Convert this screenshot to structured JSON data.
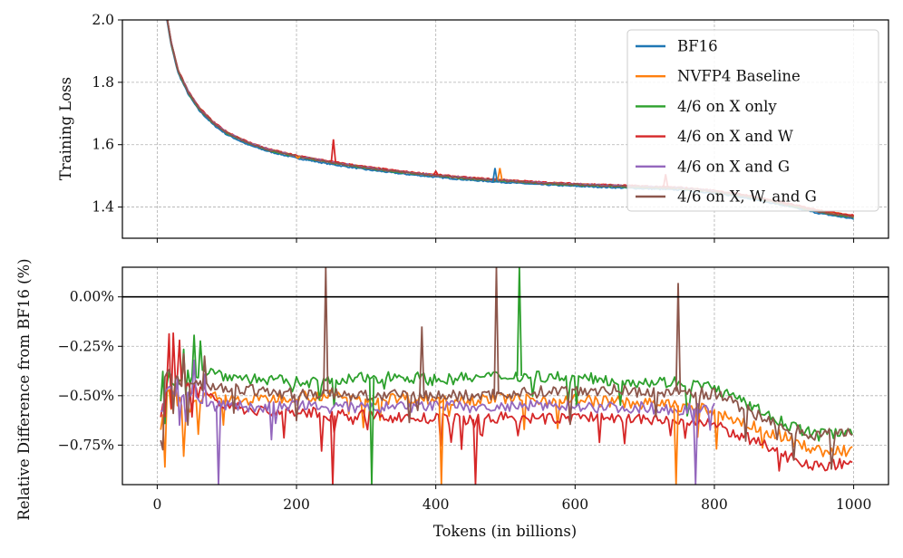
{
  "chart_data": [
    {
      "type": "line",
      "ylabel": "Training Loss",
      "xlim": [
        -50,
        1050
      ],
      "ylim": [
        1.3,
        2.0
      ],
      "yticks": [
        1.4,
        1.6,
        1.8,
        2.0
      ],
      "ytick_labels": [
        "1.4",
        "1.6",
        "1.8",
        "2.0"
      ],
      "xticks": [
        0,
        200,
        400,
        600,
        800,
        1000
      ],
      "grid": true,
      "legend_position": "top-right",
      "series": [
        {
          "name": "BF16",
          "color": "#1f77b4",
          "x": [
            0,
            10,
            20,
            30,
            45,
            60,
            80,
            100,
            130,
            160,
            200,
            250,
            300,
            350,
            400,
            450,
            500,
            550,
            600,
            650,
            700,
            750,
            800,
            850,
            900,
            950,
            1000
          ],
          "y": [
            2.3,
            2.05,
            1.92,
            1.83,
            1.76,
            1.71,
            1.665,
            1.632,
            1.6,
            1.578,
            1.557,
            1.537,
            1.52,
            1.507,
            1.496,
            1.486,
            1.479,
            1.472,
            1.467,
            1.463,
            1.459,
            1.455,
            1.445,
            1.428,
            1.405,
            1.38,
            1.362
          ]
        },
        {
          "name": "NVFP4 Baseline",
          "color": "#ff7f0e",
          "x": [
            0,
            10,
            20,
            30,
            45,
            60,
            80,
            100,
            130,
            160,
            200,
            250,
            300,
            350,
            400,
            450,
            500,
            550,
            600,
            650,
            700,
            750,
            800,
            850,
            900,
            950,
            1000
          ],
          "y": [
            2.3,
            2.06,
            1.93,
            1.84,
            1.77,
            1.72,
            1.673,
            1.64,
            1.608,
            1.585,
            1.564,
            1.545,
            1.528,
            1.514,
            1.503,
            1.493,
            1.486,
            1.479,
            1.474,
            1.47,
            1.466,
            1.462,
            1.452,
            1.436,
            1.413,
            1.389,
            1.372
          ]
        },
        {
          "name": "4/6 on X only",
          "color": "#2ca02c",
          "x": [
            0,
            10,
            20,
            30,
            45,
            60,
            80,
            100,
            130,
            160,
            200,
            250,
            300,
            350,
            400,
            450,
            500,
            550,
            600,
            650,
            700,
            750,
            800,
            850,
            900,
            950,
            1000
          ],
          "y": [
            2.3,
            2.06,
            1.925,
            1.835,
            1.765,
            1.715,
            1.67,
            1.637,
            1.605,
            1.582,
            1.562,
            1.542,
            1.525,
            1.511,
            1.5,
            1.49,
            1.483,
            1.476,
            1.471,
            1.467,
            1.463,
            1.459,
            1.449,
            1.432,
            1.409,
            1.384,
            1.367
          ]
        },
        {
          "name": "4/6 on X and W",
          "color": "#d62728",
          "x": [
            0,
            10,
            20,
            30,
            45,
            60,
            80,
            100,
            130,
            160,
            200,
            250,
            300,
            350,
            400,
            450,
            500,
            550,
            600,
            650,
            700,
            750,
            800,
            850,
            900,
            950,
            1000
          ],
          "y": [
            2.3,
            2.06,
            1.93,
            1.84,
            1.77,
            1.72,
            1.674,
            1.641,
            1.609,
            1.586,
            1.565,
            1.546,
            1.529,
            1.515,
            1.504,
            1.494,
            1.487,
            1.48,
            1.475,
            1.471,
            1.467,
            1.463,
            1.453,
            1.437,
            1.414,
            1.39,
            1.373
          ]
        },
        {
          "name": "4/6 on X and G",
          "color": "#9467bd",
          "x": [
            0,
            10,
            20,
            30,
            45,
            60,
            80,
            100,
            130,
            160,
            200,
            250,
            300,
            350,
            400,
            450,
            500,
            550,
            600,
            650,
            700,
            750,
            800
          ],
          "y": [
            2.3,
            2.06,
            1.928,
            1.838,
            1.768,
            1.718,
            1.672,
            1.639,
            1.607,
            1.584,
            1.563,
            1.544,
            1.527,
            1.513,
            1.502,
            1.492,
            1.485,
            1.478,
            1.473,
            1.469,
            1.465,
            1.461,
            1.451
          ]
        },
        {
          "name": "4/6 on X, W, and G",
          "color": "#8c564b",
          "x": [
            0,
            10,
            20,
            30,
            45,
            60,
            80,
            100,
            130,
            160,
            200,
            250,
            300,
            350,
            400,
            450,
            500,
            550,
            600,
            650,
            700,
            750,
            800,
            850,
            900,
            950,
            1000
          ],
          "y": [
            2.3,
            2.06,
            1.926,
            1.836,
            1.766,
            1.716,
            1.671,
            1.638,
            1.606,
            1.583,
            1.563,
            1.543,
            1.526,
            1.512,
            1.501,
            1.491,
            1.484,
            1.477,
            1.472,
            1.468,
            1.464,
            1.46,
            1.45,
            1.433,
            1.41,
            1.385,
            1.368
          ]
        }
      ],
      "spikes": [
        {
          "series": "4/6 on X and W",
          "x": 253,
          "y": 1.617
        },
        {
          "series": "4/6 on X and W",
          "x": 400,
          "y": 1.515
        },
        {
          "series": "BF16",
          "x": 485,
          "y": 1.525
        },
        {
          "series": "NVFP4 Baseline",
          "x": 492,
          "y": 1.525
        },
        {
          "series": "4/6 on X and W",
          "x": 730,
          "y": 1.505
        },
        {
          "series": "NVFP4 Baseline",
          "x": 202,
          "y": 1.557
        }
      ]
    },
    {
      "type": "line",
      "ylabel": "Relative Difference from BF16 (%)",
      "xlabel": "Tokens (in billions)",
      "xlim": [
        -50,
        1050
      ],
      "ylim": [
        -0.95,
        0.15
      ],
      "yticks": [
        0.0,
        -0.25,
        -0.5,
        -0.75
      ],
      "ytick_labels": [
        "0.00%",
        "−0.25%",
        "−0.50%",
        "−0.75%"
      ],
      "xticks": [
        0,
        200,
        400,
        600,
        800,
        1000
      ],
      "xtick_labels": [
        "0",
        "200",
        "400",
        "600",
        "800",
        "1000"
      ],
      "reference_line": 0.0,
      "grid": true,
      "series": [
        {
          "name": "NVFP4 Baseline",
          "color": "#ff7f0e",
          "x": [
            5,
            15,
            25,
            40,
            60,
            80,
            100,
            150,
            200,
            250,
            300,
            350,
            400,
            450,
            500,
            550,
            600,
            650,
            700,
            750,
            800,
            850,
            900,
            950,
            1000
          ],
          "y": [
            -0.7,
            -0.45,
            -0.5,
            -0.58,
            -0.52,
            -0.5,
            -0.52,
            -0.52,
            -0.5,
            -0.5,
            -0.52,
            -0.51,
            -0.52,
            -0.52,
            -0.51,
            -0.52,
            -0.52,
            -0.53,
            -0.54,
            -0.55,
            -0.58,
            -0.65,
            -0.71,
            -0.78,
            -0.78
          ]
        },
        {
          "name": "4/6 on X only",
          "color": "#2ca02c",
          "x": [
            5,
            15,
            25,
            40,
            60,
            80,
            100,
            150,
            200,
            250,
            300,
            350,
            400,
            450,
            500,
            550,
            600,
            650,
            700,
            750,
            800,
            850,
            900,
            950,
            1000
          ],
          "y": [
            -0.55,
            -0.4,
            -0.45,
            -0.4,
            -0.38,
            -0.38,
            -0.4,
            -0.42,
            -0.43,
            -0.43,
            -0.41,
            -0.4,
            -0.42,
            -0.41,
            -0.4,
            -0.4,
            -0.41,
            -0.42,
            -0.43,
            -0.43,
            -0.46,
            -0.55,
            -0.64,
            -0.7,
            -0.67
          ]
        },
        {
          "name": "4/6 on X and W",
          "color": "#d62728",
          "x": [
            5,
            15,
            25,
            40,
            60,
            80,
            100,
            150,
            200,
            250,
            300,
            350,
            400,
            450,
            500,
            550,
            600,
            650,
            700,
            750,
            800,
            850,
            900,
            950,
            1000
          ],
          "y": [
            -0.6,
            -0.4,
            -0.4,
            -0.45,
            -0.45,
            -0.52,
            -0.55,
            -0.58,
            -0.58,
            -0.6,
            -0.6,
            -0.61,
            -0.62,
            -0.62,
            -0.61,
            -0.62,
            -0.61,
            -0.61,
            -0.62,
            -0.63,
            -0.65,
            -0.72,
            -0.8,
            -0.86,
            -0.83
          ]
        },
        {
          "name": "4/6 on X and G",
          "color": "#9467bd",
          "x": [
            5,
            15,
            25,
            40,
            60,
            80,
            100,
            150,
            200,
            250,
            300,
            350,
            400,
            450,
            500,
            550,
            600,
            650,
            700,
            750,
            800
          ],
          "y": [
            -0.6,
            -0.45,
            -0.48,
            -0.5,
            -0.52,
            -0.55,
            -0.55,
            -0.56,
            -0.55,
            -0.56,
            -0.56,
            -0.56,
            -0.55,
            -0.56,
            -0.56,
            -0.55,
            -0.55,
            -0.56,
            -0.56,
            -0.57,
            -0.56
          ]
        },
        {
          "name": "4/6 on X, W, and G",
          "color": "#8c564b",
          "x": [
            5,
            15,
            25,
            40,
            60,
            80,
            100,
            150,
            200,
            250,
            300,
            350,
            400,
            450,
            500,
            550,
            600,
            650,
            700,
            750,
            800,
            850,
            900,
            950,
            1000
          ],
          "y": [
            -0.5,
            -0.35,
            -0.4,
            -0.45,
            -0.45,
            -0.45,
            -0.46,
            -0.48,
            -0.49,
            -0.49,
            -0.5,
            -0.5,
            -0.5,
            -0.5,
            -0.49,
            -0.48,
            -0.47,
            -0.47,
            -0.48,
            -0.48,
            -0.49,
            -0.58,
            -0.66,
            -0.7,
            -0.68
          ]
        }
      ],
      "spikes": [
        {
          "series": "4/6 on X, W, and G",
          "x": 242,
          "y": 0.15
        },
        {
          "series": "4/6 on X, W, and G",
          "x": 487,
          "y": 0.15
        },
        {
          "series": "4/6 on X, W, and G",
          "x": 748,
          "y": 0.07
        },
        {
          "series": "4/6 on X only",
          "x": 520,
          "y": 0.15
        },
        {
          "series": "4/6 on X, W, and G",
          "x": 380,
          "y": -0.15
        },
        {
          "series": "4/6 on X and W",
          "x": 252,
          "y": -0.95
        },
        {
          "series": "NVFP4 Baseline",
          "x": 408,
          "y": -0.95
        },
        {
          "series": "4/6 on X and G",
          "x": 88,
          "y": -0.95
        },
        {
          "series": "4/6 on X only",
          "x": 308,
          "y": -0.95
        },
        {
          "series": "4/6 on X and W",
          "x": 457,
          "y": -0.95
        },
        {
          "series": "NVFP4 Baseline",
          "x": 745,
          "y": -0.95
        },
        {
          "series": "4/6 on X and G",
          "x": 773,
          "y": -0.95
        }
      ]
    }
  ]
}
